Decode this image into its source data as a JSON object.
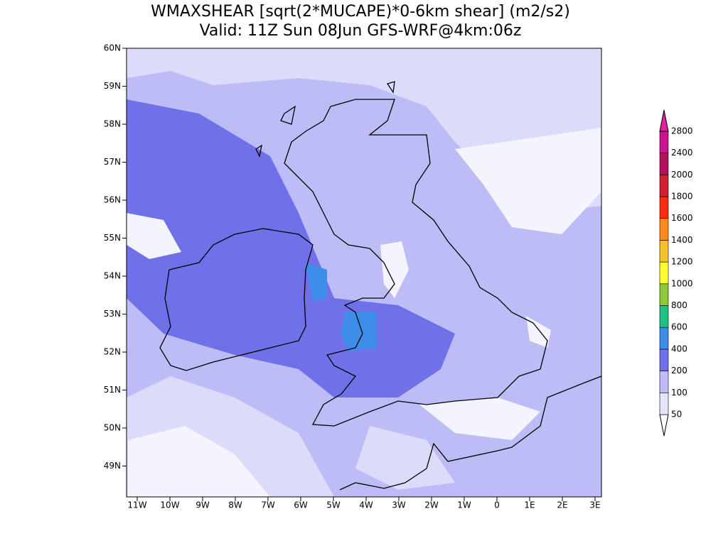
{
  "header": {
    "title": "WMAXSHEAR [sqrt(2*MUCAPE)*0-6km shear] (m2/s2)",
    "subtitle": "Valid: 11Z Sun 08Jun GFS-WRF@4km:06z"
  },
  "map": {
    "lat_labels": [
      "60N",
      "59N",
      "58N",
      "57N",
      "56N",
      "55N",
      "54N",
      "53N",
      "52N",
      "51N",
      "50N",
      "49N"
    ],
    "lon_labels": [
      "11W",
      "10W",
      "9W",
      "8W",
      "7W",
      "6W",
      "5W",
      "4W",
      "3W",
      "2W",
      "1W",
      "0",
      "1E",
      "2E",
      "3E"
    ]
  },
  "colorbar": {
    "labels": [
      "50",
      "100",
      "200",
      "400",
      "600",
      "800",
      "1000",
      "1200",
      "1400",
      "1600",
      "1800",
      "2000",
      "2400",
      "2800"
    ],
    "colors": [
      "#ffffff",
      "#e4e4fb",
      "#bcbcf6",
      "#7070e8",
      "#3c8ee8",
      "#20c080",
      "#8cc83a",
      "#ffff33",
      "#f5c02a",
      "#ff8a22",
      "#ff2a12",
      "#d21e32",
      "#b0105c",
      "#c8148e",
      "#e81ea0"
    ]
  }
}
